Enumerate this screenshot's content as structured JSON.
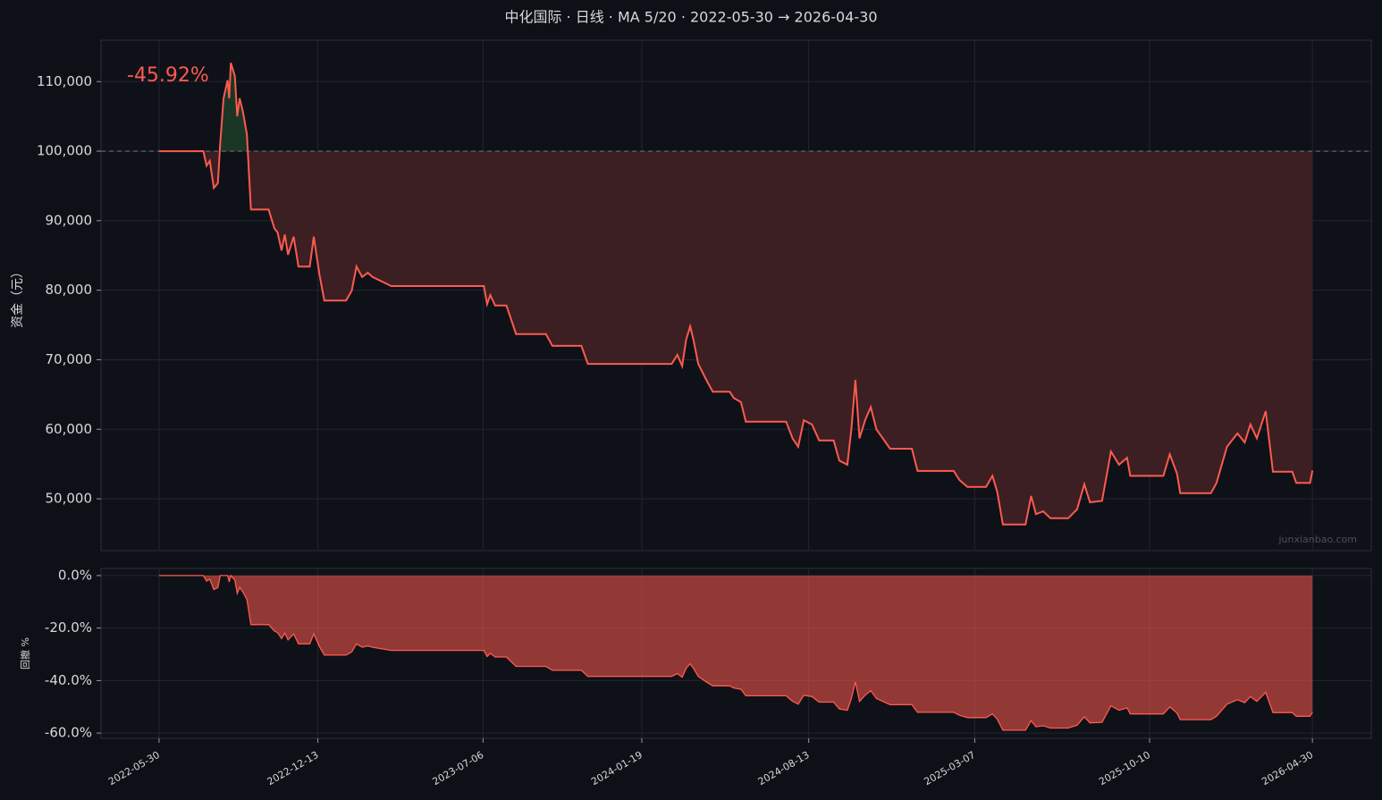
{
  "chart_data": [
    {
      "type": "line",
      "title": "中化国际 · 日线 · MA 5/20 · 2022-05-30 → 2026-04-30",
      "y_label": "资金（元）",
      "annotation": "-45.92%",
      "watermark": "junxianbao.com",
      "baseline": 100000,
      "grid": true,
      "xlim": [
        "2022-03-19",
        "2026-07-12"
      ],
      "ylim": [
        42550,
        115950
      ],
      "yticks": [
        {
          "value": 50000,
          "label": "50,000"
        },
        {
          "value": 60000,
          "label": "60,000"
        },
        {
          "value": 70000,
          "label": "70,000"
        },
        {
          "value": 80000,
          "label": "80,000"
        },
        {
          "value": 90000,
          "label": "90,000"
        },
        {
          "value": 100000,
          "label": "100,000"
        },
        {
          "value": 110000,
          "label": "110,000"
        }
      ],
      "x": [
        "2022-05-30",
        "2022-07-24",
        "2022-07-28",
        "2022-08-01",
        "2022-08-06",
        "2022-08-11",
        "2022-08-14",
        "2022-08-18",
        "2022-08-23",
        "2022-08-25",
        "2022-08-27",
        "2022-09-01",
        "2022-09-04",
        "2022-09-07",
        "2022-09-11",
        "2022-09-16",
        "2022-09-21",
        "2022-10-13",
        "2022-10-20",
        "2022-10-24",
        "2022-10-29",
        "2022-11-02",
        "2022-11-06",
        "2022-11-13",
        "2022-11-19",
        "2022-12-03",
        "2022-12-08",
        "2022-12-15",
        "2022-12-21",
        "2023-01-17",
        "2023-01-24",
        "2023-01-30",
        "2023-02-06",
        "2023-02-13",
        "2023-02-19",
        "2023-03-14",
        "2023-07-07",
        "2023-07-11",
        "2023-07-15",
        "2023-07-21",
        "2023-08-04",
        "2023-08-09",
        "2023-08-16",
        "2023-09-22",
        "2023-09-30",
        "2023-11-05",
        "2023-11-13",
        "2024-02-25",
        "2024-03-03",
        "2024-03-09",
        "2024-03-14",
        "2024-03-19",
        "2024-03-23",
        "2024-03-29",
        "2024-04-08",
        "2024-04-16",
        "2024-05-07",
        "2024-05-12",
        "2024-05-21",
        "2024-05-27",
        "2024-07-16",
        "2024-07-24",
        "2024-07-31",
        "2024-08-07",
        "2024-08-17",
        "2024-08-26",
        "2024-09-13",
        "2024-09-20",
        "2024-09-30",
        "2024-10-05",
        "2024-10-10",
        "2024-10-15",
        "2024-10-22",
        "2024-10-29",
        "2024-11-05",
        "2024-11-13",
        "2024-11-22",
        "2024-12-19",
        "2024-12-26",
        "2025-02-09",
        "2025-02-16",
        "2025-02-26",
        "2025-03-21",
        "2025-03-29",
        "2025-04-04",
        "2025-04-11",
        "2025-05-09",
        "2025-05-16",
        "2025-05-22",
        "2025-05-31",
        "2025-06-09",
        "2025-07-01",
        "2025-07-12",
        "2025-07-21",
        "2025-07-28",
        "2025-08-12",
        "2025-08-23",
        "2025-09-02",
        "2025-09-12",
        "2025-09-16",
        "2025-10-27",
        "2025-11-04",
        "2025-11-13",
        "2025-11-17",
        "2025-12-25",
        "2026-01-01",
        "2026-01-14",
        "2026-01-27",
        "2026-02-05",
        "2026-02-12",
        "2026-02-20",
        "2026-03-03",
        "2026-03-12",
        "2026-04-05",
        "2026-04-10",
        "2026-04-27",
        "2026-04-30"
      ],
      "series": [
        {
          "color": "#ff5a4f",
          "values": [
            100000,
            100000,
            97900,
            98600,
            94700,
            95400,
            101200,
            107600,
            110200,
            107600,
            112700,
            110800,
            105000,
            107600,
            105700,
            102400,
            91600,
            91600,
            88900,
            88300,
            85700,
            88000,
            85100,
            87700,
            83400,
            83400,
            87700,
            82300,
            78500,
            78500,
            79900,
            83400,
            81900,
            82500,
            81900,
            80600,
            80600,
            78000,
            79300,
            77800,
            77800,
            76100,
            73700,
            73700,
            72000,
            72000,
            69400,
            69400,
            70700,
            69100,
            72900,
            74800,
            72900,
            69400,
            67100,
            65400,
            65400,
            64500,
            63900,
            61100,
            61100,
            58700,
            57500,
            61300,
            60700,
            58400,
            58400,
            55500,
            54900,
            60000,
            67100,
            58700,
            61300,
            63200,
            60000,
            58700,
            57200,
            57200,
            54000,
            54000,
            52700,
            51700,
            51700,
            53300,
            51000,
            46300,
            46300,
            50400,
            47800,
            48200,
            47200,
            47200,
            48500,
            52100,
            49500,
            49700,
            56800,
            54900,
            55900,
            53300,
            53300,
            56400,
            53600,
            50800,
            50800,
            52300,
            57500,
            59400,
            58100,
            60700,
            58700,
            62600,
            53900,
            53900,
            52300,
            52300,
            54080
          ]
        }
      ]
    },
    {
      "type": "area",
      "y_label": "回撤 %",
      "grid": true,
      "xlim": [
        "2022-03-19",
        "2026-07-12"
      ],
      "xticks": [
        "2022-05-30",
        "2022-12-13",
        "2023-07-06",
        "2024-01-19",
        "2024-08-13",
        "2025-03-07",
        "2025-10-10",
        "2026-04-30"
      ],
      "ylim": [
        -62,
        2.7
      ],
      "yticks": [
        {
          "value": -60,
          "label": "-60.0%"
        },
        {
          "value": -40,
          "label": "-40.0%"
        },
        {
          "value": -20,
          "label": "-20.0%"
        },
        {
          "value": 0,
          "label": "0.0%"
        }
      ],
      "x": [
        "2022-05-30",
        "2022-07-24",
        "2022-07-28",
        "2022-08-01",
        "2022-08-06",
        "2022-08-11",
        "2022-08-14",
        "2022-08-18",
        "2022-08-23",
        "2022-08-25",
        "2022-08-27",
        "2022-09-01",
        "2022-09-04",
        "2022-09-07",
        "2022-09-11",
        "2022-09-16",
        "2022-09-21",
        "2022-10-13",
        "2022-10-20",
        "2022-10-24",
        "2022-10-29",
        "2022-11-02",
        "2022-11-06",
        "2022-11-13",
        "2022-11-19",
        "2022-12-03",
        "2022-12-08",
        "2022-12-15",
        "2022-12-21",
        "2023-01-17",
        "2023-01-24",
        "2023-01-30",
        "2023-02-06",
        "2023-02-13",
        "2023-02-19",
        "2023-03-14",
        "2023-07-07",
        "2023-07-11",
        "2023-07-15",
        "2023-07-21",
        "2023-08-04",
        "2023-08-09",
        "2023-08-16",
        "2023-09-22",
        "2023-09-30",
        "2023-11-05",
        "2023-11-13",
        "2024-02-25",
        "2024-03-03",
        "2024-03-09",
        "2024-03-14",
        "2024-03-19",
        "2024-03-23",
        "2024-03-29",
        "2024-04-08",
        "2024-04-16",
        "2024-05-07",
        "2024-05-12",
        "2024-05-21",
        "2024-05-27",
        "2024-07-16",
        "2024-07-24",
        "2024-07-31",
        "2024-08-07",
        "2024-08-17",
        "2024-08-26",
        "2024-09-13",
        "2024-09-20",
        "2024-09-30",
        "2024-10-05",
        "2024-10-10",
        "2024-10-15",
        "2024-10-22",
        "2024-10-29",
        "2024-11-05",
        "2024-11-13",
        "2024-11-22",
        "2024-12-19",
        "2024-12-26",
        "2025-02-09",
        "2025-02-16",
        "2025-02-26",
        "2025-03-21",
        "2025-03-29",
        "2025-04-04",
        "2025-04-11",
        "2025-05-09",
        "2025-05-16",
        "2025-05-22",
        "2025-05-31",
        "2025-06-09",
        "2025-07-01",
        "2025-07-12",
        "2025-07-21",
        "2025-07-28",
        "2025-08-12",
        "2025-08-23",
        "2025-09-02",
        "2025-09-12",
        "2025-09-16",
        "2025-10-27",
        "2025-11-04",
        "2025-11-13",
        "2025-11-17",
        "2025-12-25",
        "2026-01-01",
        "2026-01-14",
        "2026-01-27",
        "2026-02-05",
        "2026-02-12",
        "2026-02-20",
        "2026-03-03",
        "2026-03-12",
        "2026-04-05",
        "2026-04-10",
        "2026-04-27",
        "2026-04-30"
      ],
      "series": [
        {
          "color": "#ff5a4f",
          "values": [
            0,
            0,
            -2.1,
            -1.4,
            -5.3,
            -4.6,
            0,
            0,
            0,
            -2.4,
            0,
            -1.7,
            -6.8,
            -4.5,
            -6.2,
            -9.1,
            -18.7,
            -18.7,
            -21.1,
            -21.7,
            -24.0,
            -21.9,
            -24.5,
            -22.2,
            -26.0,
            -26.0,
            -22.2,
            -27.0,
            -30.3,
            -30.3,
            -29.1,
            -26.0,
            -27.3,
            -26.8,
            -27.3,
            -28.5,
            -28.5,
            -30.8,
            -29.6,
            -31.0,
            -31.0,
            -32.5,
            -34.6,
            -34.6,
            -36.1,
            -36.1,
            -38.4,
            -38.4,
            -37.3,
            -38.7,
            -35.3,
            -33.6,
            -35.3,
            -38.4,
            -40.5,
            -42.0,
            -42.0,
            -42.8,
            -43.3,
            -45.8,
            -45.8,
            -47.9,
            -49.0,
            -45.6,
            -46.1,
            -48.2,
            -48.2,
            -50.8,
            -51.3,
            -46.8,
            -40.5,
            -47.9,
            -45.6,
            -43.9,
            -46.8,
            -47.9,
            -49.2,
            -49.2,
            -52.1,
            -52.1,
            -53.2,
            -54.1,
            -54.1,
            -52.7,
            -54.7,
            -58.9,
            -58.9,
            -55.3,
            -57.6,
            -57.2,
            -58.1,
            -58.1,
            -57.0,
            -53.8,
            -56.1,
            -55.9,
            -49.6,
            -51.3,
            -50.4,
            -52.7,
            -52.7,
            -50.0,
            -52.4,
            -54.9,
            -54.9,
            -53.6,
            -49.0,
            -47.3,
            -48.4,
            -46.1,
            -47.9,
            -44.5,
            -52.2,
            -52.2,
            -53.6,
            -53.6,
            -52.0
          ]
        }
      ]
    }
  ]
}
